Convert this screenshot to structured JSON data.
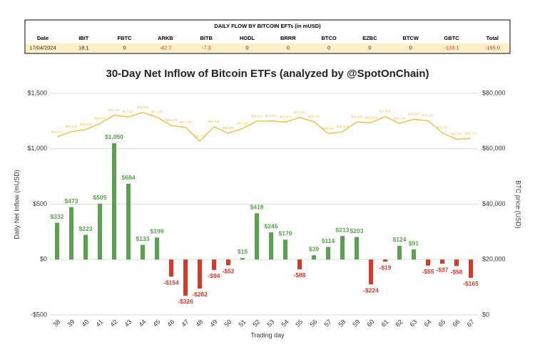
{
  "table": {
    "title": "DAILY FLOW BY BITCOIN EFTs (in mUSD)",
    "headers": [
      "Date",
      "IBIT",
      "FBTC",
      "ARKB",
      "BITB",
      "HODL",
      "BRRR",
      "BTCO",
      "EZBC",
      "BTCW",
      "GBTC",
      "Total"
    ],
    "rows": [
      [
        "17/04/2024",
        "18.1",
        "0",
        "-42.7",
        "-7.3",
        "0",
        "0",
        "0",
        "0",
        "0",
        "-133.1",
        "-165.0"
      ]
    ]
  },
  "chart_data": {
    "type": "bar",
    "title": "30-Day Net Inflow of Bitcoin ETFs (analyzed by @SpotOnChain)",
    "x_label": "Trading day",
    "y_label": "Daily Net Inflow (mUSD)",
    "y2_label": "BTC price (USD)",
    "categories": [
      38,
      39,
      40,
      41,
      42,
      43,
      44,
      45,
      46,
      47,
      48,
      49,
      50,
      51,
      52,
      53,
      54,
      55,
      56,
      57,
      58,
      59,
      60,
      61,
      62,
      63,
      64,
      65,
      66,
      67
    ],
    "values": [
      332,
      473,
      223,
      505,
      1050,
      684,
      133,
      199,
      -154,
      -326,
      -262,
      -94,
      -52,
      15,
      418,
      245,
      179,
      -88,
      39,
      114,
      213,
      203,
      -224,
      -19,
      124,
      91,
      -55,
      -37,
      -58,
      -165
    ],
    "value_labels": [
      "$332",
      "$473",
      "$223",
      "$505",
      "$1,050",
      "$684",
      "$133",
      "$199",
      "-$154",
      "-$326",
      "-$262",
      "-$94",
      "-$52",
      "$15",
      "$418",
      "$245",
      "$179",
      "-$88",
      "$39",
      "$114",
      "$213",
      "$203",
      "-$224",
      "-$19",
      "$124",
      "$91",
      "-$55",
      "-$37",
      "-$58",
      "-$165"
    ],
    "colors": {
      "positive": "#5aa150",
      "negative": "#d6382b"
    },
    "ylim": [
      -500,
      1500
    ],
    "yticks": [
      {
        "value": -500,
        "label": "-$500"
      },
      {
        "value": 0,
        "label": "$0"
      },
      {
        "value": 500,
        "label": "$500"
      },
      {
        "value": 1000,
        "label": "$1,000"
      },
      {
        "value": 1500,
        "label": "$1,500"
      }
    ],
    "y2lim": [
      0,
      80000
    ],
    "y2ticks": [
      {
        "value": 0,
        "label": "$0"
      },
      {
        "value": 20000,
        "label": "$20,000"
      },
      {
        "value": 40000,
        "label": "$40,000"
      },
      {
        "value": 60000,
        "label": "$60,000"
      },
      {
        "value": 80000,
        "label": "$80,000"
      }
    ],
    "grid": true,
    "line": {
      "type": "line",
      "axis": "y2",
      "color": "#eec14f",
      "values": [
        64292,
        66149,
        66945,
        69076,
        72107,
        71467,
        73098,
        71430,
        68409,
        67709,
        62733,
        67919,
        65595,
        67311,
        69920,
        70037,
        69620,
        71247,
        69780,
        65440,
        66124,
        69642,
        69403,
        71629,
        69139,
        70626,
        70107,
        65753,
        63431,
        63721
      ],
      "value_labels": [
        "$64,292",
        "$66,149",
        "$66,945",
        "$69,076",
        "$72,107",
        "$71,467",
        "$73,098",
        "$71,430",
        "$68,409",
        "$67,709",
        "$62,733",
        "$67,919",
        "$65,595",
        "$67,311",
        "$69,920",
        "$70,037",
        "$69,620",
        "$71,247",
        "$69,780",
        "$65,440",
        "$66,124",
        "$69,642",
        "$69,403",
        "$71,629",
        "$69,139",
        "$70,626",
        "$70,107",
        "$65,753",
        "$63,431",
        "$63,721"
      ]
    }
  }
}
